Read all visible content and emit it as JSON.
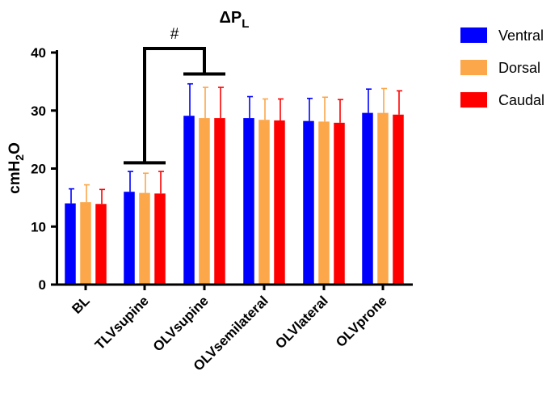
{
  "chart_data": {
    "type": "bar",
    "title": {
      "main": "ΔP",
      "subscript": "L"
    },
    "ylabel": {
      "prefix": "cmH",
      "subscript": "2",
      "suffix": "O"
    },
    "xlabel": "",
    "ylim": [
      0,
      40
    ],
    "yticks": [
      0,
      10,
      20,
      30,
      40
    ],
    "categories": [
      "BL",
      "TLVsupine",
      "OLVsupine",
      "OLVsemilateral",
      "OLVlateral",
      "OLVprone"
    ],
    "series": [
      {
        "name": "Ventral",
        "color": "#0000ff",
        "values": [
          14.0,
          16.0,
          29.1,
          28.7,
          28.2,
          29.6
        ],
        "errors": [
          2.5,
          3.5,
          5.5,
          3.7,
          3.9,
          4.1
        ]
      },
      {
        "name": "Dorsal",
        "color": "#fca74a",
        "values": [
          14.2,
          15.8,
          28.7,
          28.4,
          28.1,
          29.6
        ],
        "errors": [
          3.0,
          3.4,
          5.3,
          3.6,
          4.2,
          4.2
        ]
      },
      {
        "name": "Caudal",
        "color": "#ff0000",
        "values": [
          13.9,
          15.7,
          28.7,
          28.3,
          27.9,
          29.3
        ],
        "errors": [
          2.5,
          3.8,
          5.3,
          3.7,
          4.0,
          4.1
        ]
      }
    ],
    "annotation": {
      "label": "#",
      "from_category": "TLVsupine",
      "to_category": "OLVsupine",
      "from_level": 21,
      "to_level": 36.3,
      "top_level": 40.7
    },
    "legend_position": "top-right",
    "grid": false
  }
}
